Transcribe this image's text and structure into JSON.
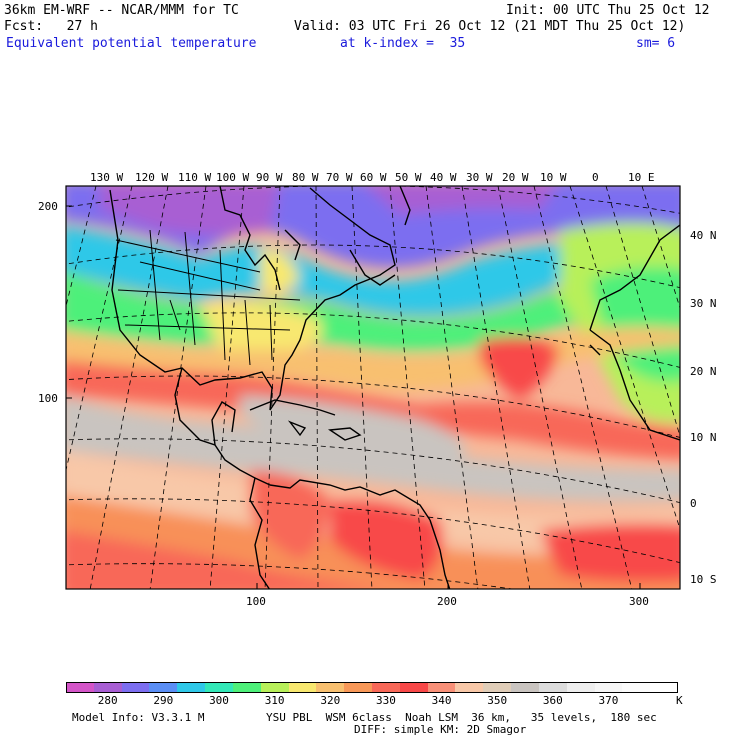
{
  "header": {
    "model_title": "36km EM-WRF -- NCAR/MMM for TC",
    "init_time": "Init: 00 UTC Thu 25 Oct 12",
    "forecast": "Fcst:   27 h",
    "valid_time": "Valid: 03 UTC Fri 26 Oct 12 (21 MDT Thu 25 Oct 12)",
    "field_name": "Equivalent potential temperature",
    "k_index": "at k-index =  35",
    "smoothing": "sm= 6"
  },
  "map": {
    "top_longitude_labels": [
      "130 W",
      "120 W",
      "110 W",
      "100 W",
      "90 W",
      "80 W",
      "70 W",
      "60 W",
      "50 W",
      "40 W",
      "30 W",
      "20 W",
      "10 W",
      "0",
      "10 E"
    ],
    "right_latitude_labels": [
      "40 N",
      "30 N",
      "20 N",
      "10 N",
      "0",
      "10 S"
    ],
    "left_grid_labels": [
      "200",
      "100"
    ],
    "bottom_grid_labels": [
      "100",
      "200",
      "300"
    ]
  },
  "colorbar": {
    "colors": [
      "#d455c8",
      "#a85ed3",
      "#7c6ef0",
      "#5a8ef5",
      "#2fc8e8",
      "#33e8b8",
      "#4ef07a",
      "#b8f05a",
      "#f8e870",
      "#f8c070",
      "#f89858",
      "#f86858",
      "#f84848",
      "#f89078",
      "#f8c8a8",
      "#e0cdb8",
      "#c9c4c0",
      "#dcdcdc",
      "#eeeeee",
      "#f6f6f6",
      "#fbfbfb",
      "#ffffff"
    ],
    "labels": [
      "280",
      "290",
      "300",
      "310",
      "320",
      "330",
      "340",
      "350",
      "360",
      "370"
    ],
    "unit": "K"
  },
  "footer": {
    "model_info": "Model Info: V3.3.1 M",
    "physics_line1": "YSU PBL  WSM 6class  Noah LSM  36 km,   35 levels,  180 sec",
    "physics_line2": "DIFF: simple KM: 2D Smagor"
  }
}
